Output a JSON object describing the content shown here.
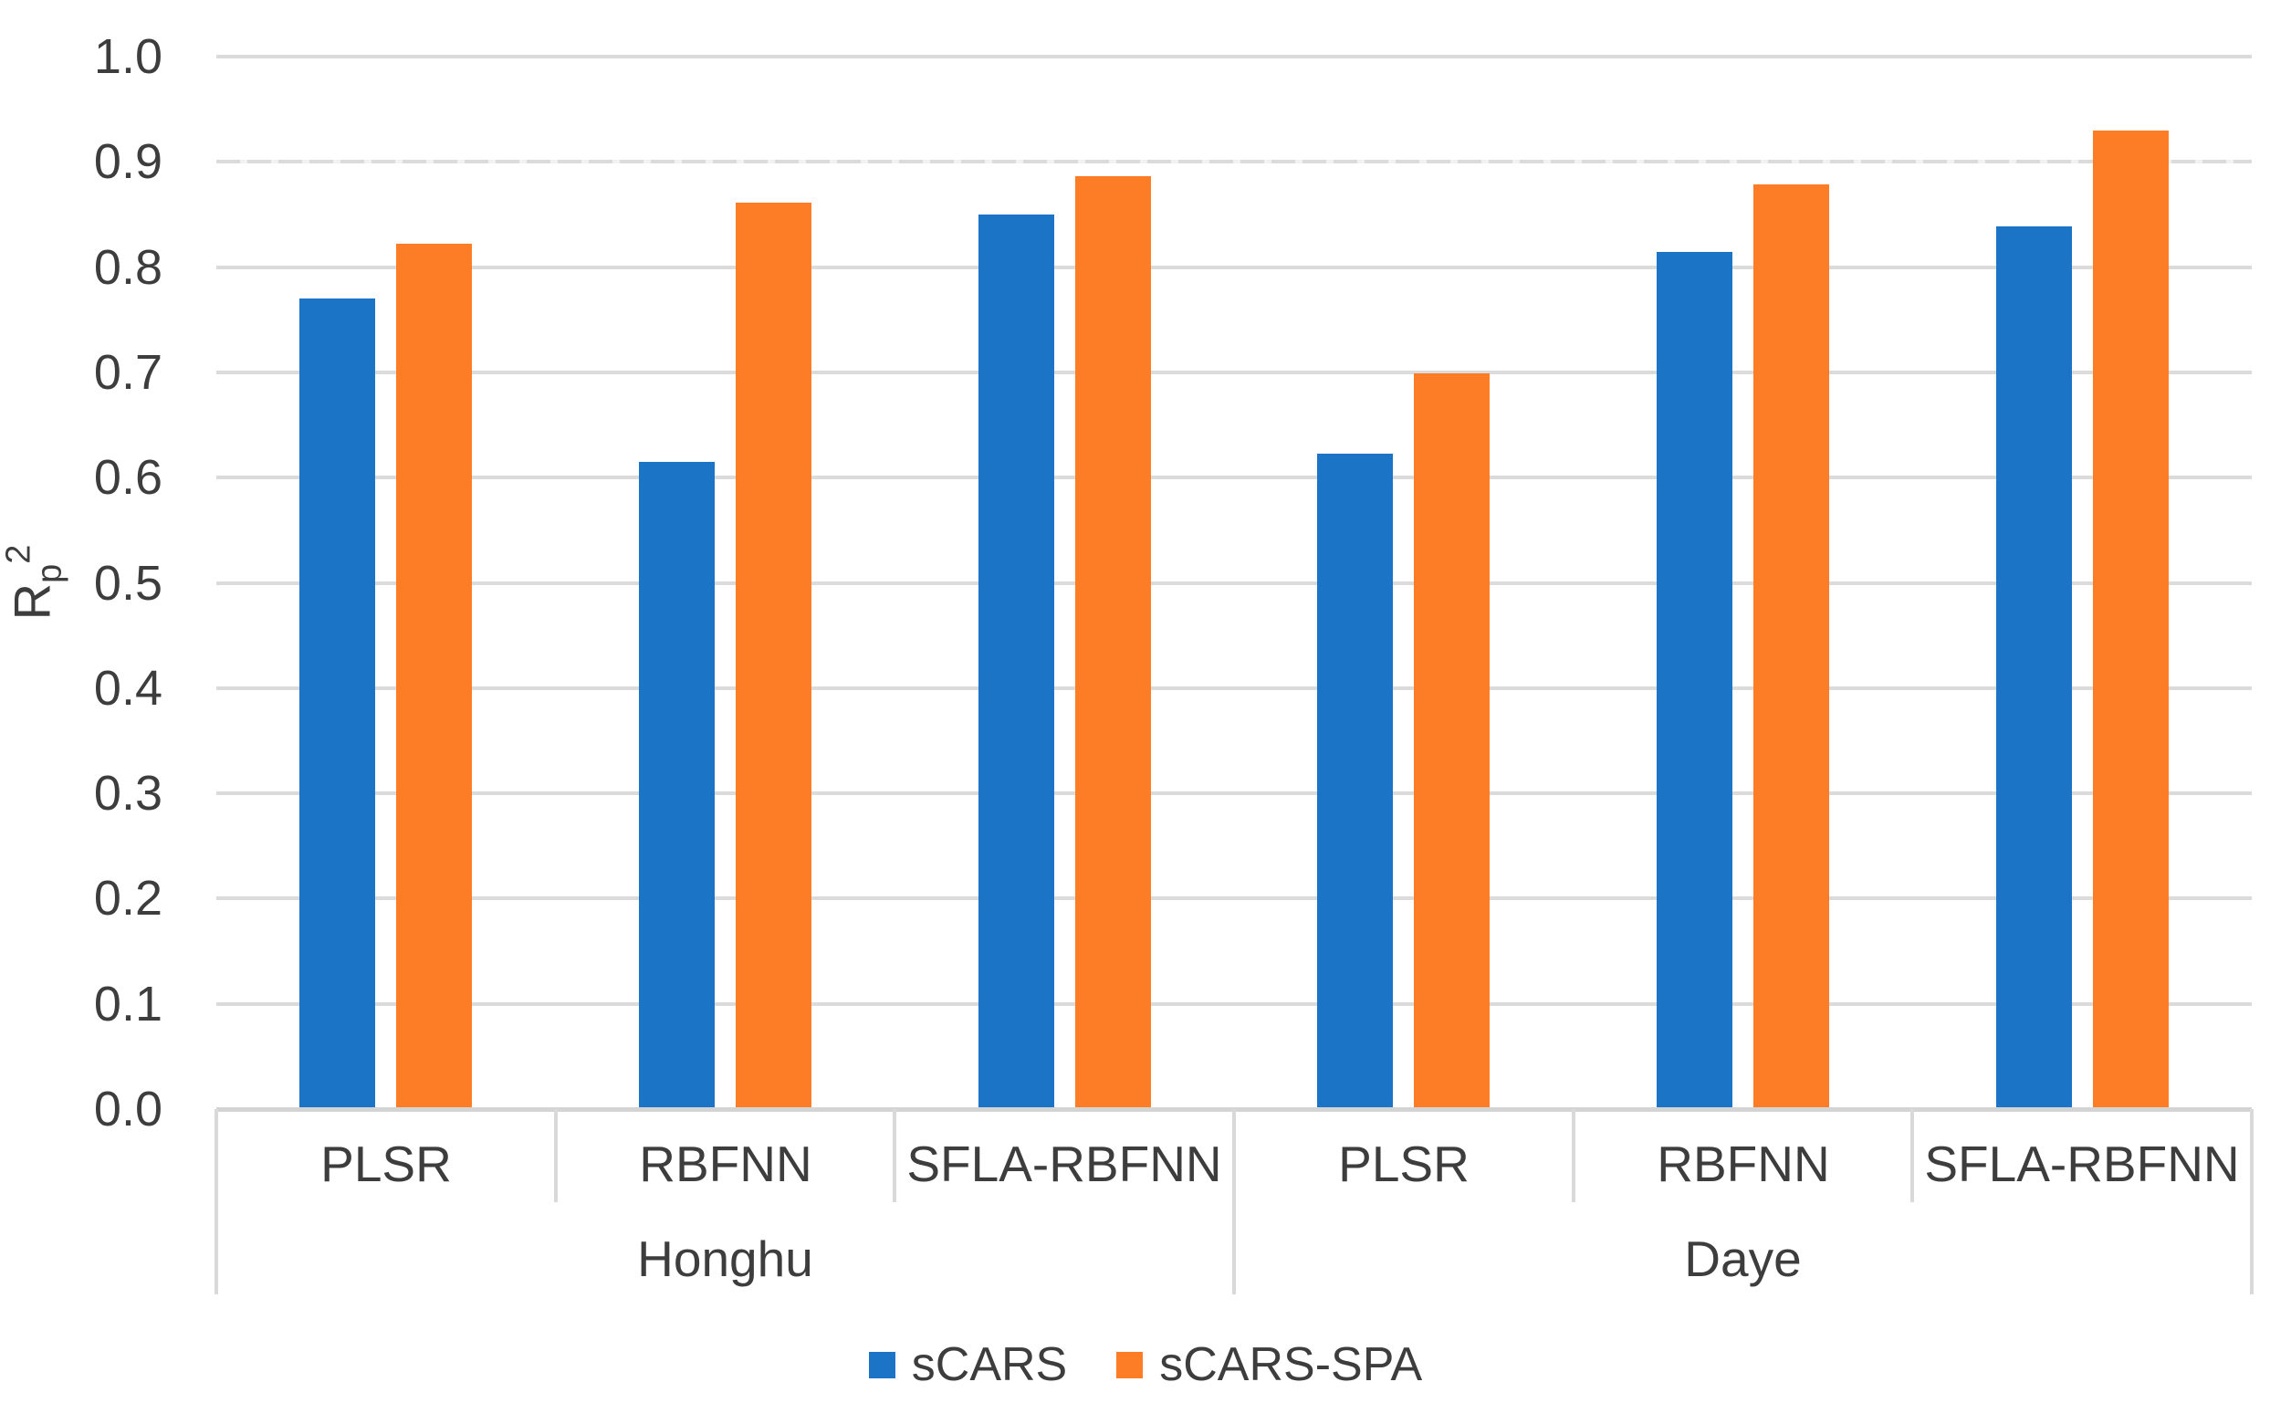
{
  "chart_data": {
    "type": "bar",
    "title": "",
    "ylabel": {
      "base": "R",
      "sub": "p",
      "sup": "2"
    },
    "groups": [
      "Honghu",
      "Daye"
    ],
    "categories": [
      "PLSR",
      "RBFNN",
      "SFLA-RBFNN",
      "PLSR",
      "RBFNN",
      "SFLA-RBFNN"
    ],
    "category_groups": [
      "Honghu",
      "Honghu",
      "Honghu",
      "Daye",
      "Daye",
      "Daye"
    ],
    "series": [
      {
        "name": "sCARS",
        "color": "#1b74c5",
        "values": [
          0.77,
          0.615,
          0.85,
          0.623,
          0.814,
          0.839
        ]
      },
      {
        "name": "sCARS-SPA",
        "color": "#fd7d27",
        "values": [
          0.822,
          0.861,
          0.886,
          0.699,
          0.879,
          0.93
        ]
      }
    ],
    "ylim": [
      0.0,
      1.0
    ],
    "ytick_step": 0.1,
    "ytick_labels": [
      "0.0",
      "0.1",
      "0.2",
      "0.3",
      "0.4",
      "0.5",
      "0.6",
      "0.7",
      "0.8",
      "0.9",
      "1.0"
    ],
    "grid": true,
    "dashed_gridline_at": 0.9,
    "legend_position": "bottom"
  },
  "colors": {
    "gridline": "#dbdbdb",
    "axis_line": "#d4d4d4",
    "table_border": "#d9d9d9",
    "text": "#3d3d3d",
    "background": "#ffffff"
  }
}
